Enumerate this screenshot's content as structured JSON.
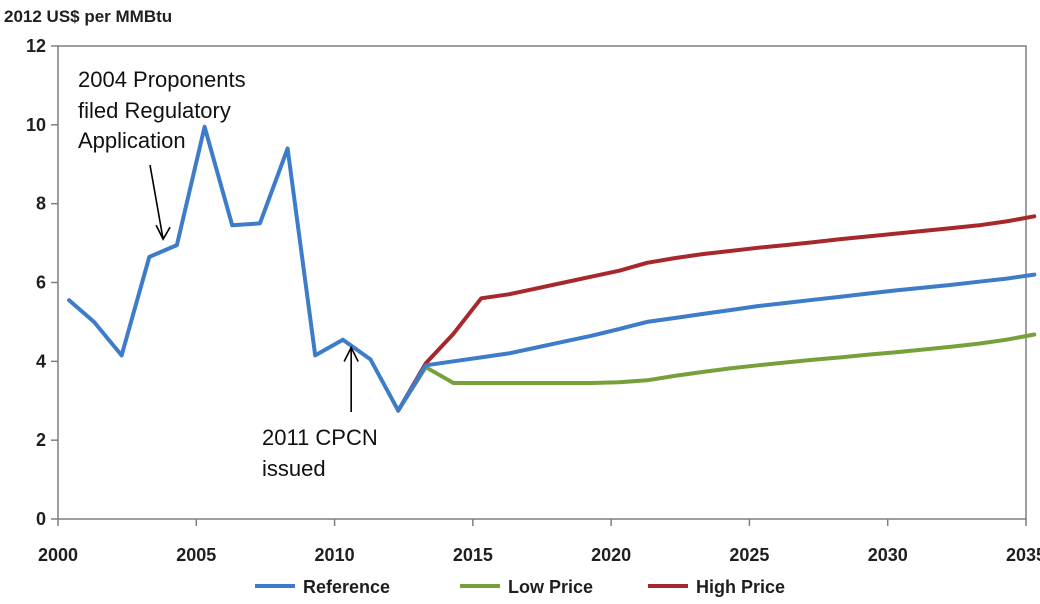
{
  "chart_data": {
    "type": "line",
    "title": "",
    "ylabel": "2012 US$ per MMBtu",
    "xlabel": "",
    "xlim": [
      2000,
      2035
    ],
    "ylim": [
      0,
      12
    ],
    "x_ticks": [
      2000,
      2005,
      2010,
      2015,
      2020,
      2025,
      2030,
      2035
    ],
    "y_ticks": [
      0,
      2,
      4,
      6,
      8,
      10,
      12
    ],
    "grid": false,
    "legend_position": "bottom",
    "series": [
      {
        "name": "Reference",
        "color": "#3d7cc9",
        "points": [
          [
            2000.4,
            5.55
          ],
          [
            2001.3,
            5.0
          ],
          [
            2002.3,
            4.15
          ],
          [
            2003.3,
            6.65
          ],
          [
            2004.3,
            6.95
          ],
          [
            2005.3,
            9.95
          ],
          [
            2006.3,
            7.45
          ],
          [
            2007.3,
            7.5
          ],
          [
            2008.3,
            9.4
          ],
          [
            2009.3,
            4.15
          ],
          [
            2010.3,
            4.55
          ],
          [
            2011.3,
            4.05
          ],
          [
            2012.3,
            2.75
          ],
          [
            2013.3,
            3.9
          ],
          [
            2014.3,
            4.0
          ],
          [
            2015.3,
            4.1
          ],
          [
            2016.3,
            4.2
          ],
          [
            2017.3,
            4.35
          ],
          [
            2018.3,
            4.5
          ],
          [
            2019.3,
            4.65
          ],
          [
            2020.3,
            4.82
          ],
          [
            2021.3,
            5.0
          ],
          [
            2022.3,
            5.1
          ],
          [
            2023.3,
            5.2
          ],
          [
            2024.3,
            5.3
          ],
          [
            2025.3,
            5.4
          ],
          [
            2026.3,
            5.48
          ],
          [
            2027.3,
            5.56
          ],
          [
            2028.3,
            5.64
          ],
          [
            2029.3,
            5.72
          ],
          [
            2030.3,
            5.8
          ],
          [
            2031.3,
            5.87
          ],
          [
            2032.3,
            5.94
          ],
          [
            2033.3,
            6.02
          ],
          [
            2034.3,
            6.1
          ],
          [
            2035.3,
            6.2
          ]
        ]
      },
      {
        "name": "Low Price",
        "color": "#76a13a",
        "points": [
          [
            2012.3,
            2.75
          ],
          [
            2013.3,
            3.85
          ],
          [
            2014.3,
            3.45
          ],
          [
            2015.3,
            3.45
          ],
          [
            2016.3,
            3.45
          ],
          [
            2017.3,
            3.45
          ],
          [
            2018.3,
            3.45
          ],
          [
            2019.3,
            3.45
          ],
          [
            2020.3,
            3.47
          ],
          [
            2021.3,
            3.52
          ],
          [
            2022.3,
            3.63
          ],
          [
            2023.3,
            3.73
          ],
          [
            2024.3,
            3.82
          ],
          [
            2025.3,
            3.9
          ],
          [
            2026.3,
            3.97
          ],
          [
            2027.3,
            4.04
          ],
          [
            2028.3,
            4.1
          ],
          [
            2029.3,
            4.17
          ],
          [
            2030.3,
            4.23
          ],
          [
            2031.3,
            4.3
          ],
          [
            2032.3,
            4.37
          ],
          [
            2033.3,
            4.45
          ],
          [
            2034.3,
            4.55
          ],
          [
            2035.3,
            4.68
          ]
        ]
      },
      {
        "name": "High Price",
        "color": "#a6282c",
        "points": [
          [
            2012.3,
            2.75
          ],
          [
            2013.3,
            3.95
          ],
          [
            2014.3,
            4.7
          ],
          [
            2015.3,
            5.6
          ],
          [
            2016.3,
            5.7
          ],
          [
            2017.3,
            5.85
          ],
          [
            2018.3,
            6.0
          ],
          [
            2019.3,
            6.15
          ],
          [
            2020.3,
            6.3
          ],
          [
            2021.3,
            6.5
          ],
          [
            2022.3,
            6.62
          ],
          [
            2023.3,
            6.72
          ],
          [
            2024.3,
            6.8
          ],
          [
            2025.3,
            6.88
          ],
          [
            2026.3,
            6.95
          ],
          [
            2027.3,
            7.02
          ],
          [
            2028.3,
            7.1
          ],
          [
            2029.3,
            7.17
          ],
          [
            2030.3,
            7.24
          ],
          [
            2031.3,
            7.31
          ],
          [
            2032.3,
            7.38
          ],
          [
            2033.3,
            7.45
          ],
          [
            2034.3,
            7.55
          ],
          [
            2035.3,
            7.68
          ]
        ]
      }
    ],
    "annotations": [
      {
        "name": "annotation-2004",
        "lines": [
          "2004 Proponents",
          "filed Regulatory",
          "Application"
        ],
        "arrow_to": [
          2003.8,
          7.1
        ]
      },
      {
        "name": "annotation-2011",
        "lines": [
          "2011 CPCN",
          "issued"
        ],
        "arrow_to": [
          2010.6,
          4.35
        ]
      }
    ]
  }
}
